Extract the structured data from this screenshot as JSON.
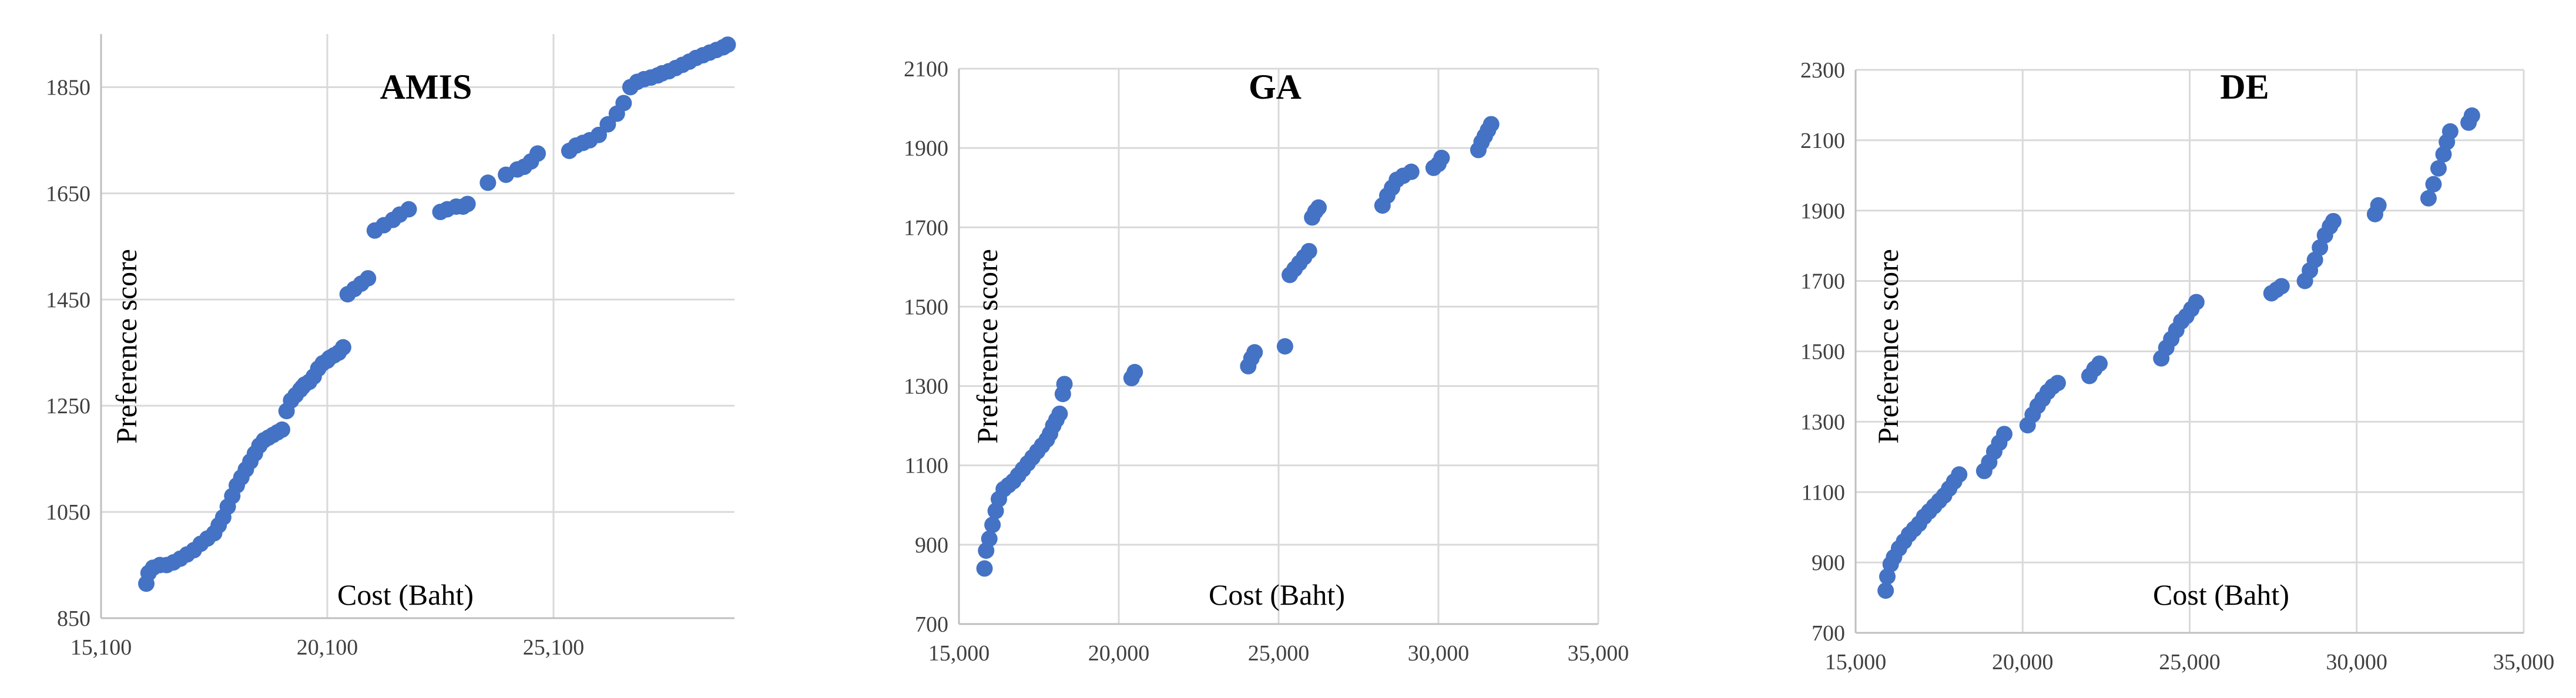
{
  "colors": {
    "marker": "#4472C4",
    "grid": "#d9d9d9",
    "axis": "#bfbfbf",
    "text": "#404040"
  },
  "chart_data": [
    {
      "type": "scatter",
      "title": "AMIS",
      "xlabel": "Cost (Baht)",
      "ylabel": "Preference score",
      "xlim": [
        15100,
        29100
      ],
      "ylim": [
        850,
        1950
      ],
      "xticks": [
        15100,
        20100,
        25100
      ],
      "xtick_labels": [
        "15,100",
        "20,100",
        "25,100"
      ],
      "yticks": [
        850,
        1050,
        1250,
        1450,
        1650,
        1850
      ],
      "ytick_labels": [
        "850",
        "1050",
        "1250",
        "1450",
        "1650",
        "1850"
      ],
      "grid": true,
      "legend": "none",
      "x": [
        16100,
        16150,
        16250,
        16400,
        16550,
        16700,
        16850,
        17000,
        17150,
        17300,
        17450,
        17600,
        17700,
        17800,
        17900,
        18000,
        18100,
        18200,
        18300,
        18400,
        18500,
        18600,
        18700,
        18800,
        18900,
        19000,
        19100,
        19200,
        19300,
        19400,
        19500,
        19550,
        19600,
        19700,
        19800,
        19900,
        20000,
        20100,
        20150,
        20250,
        20350,
        20450,
        20550,
        20700,
        20850,
        21000,
        21150,
        21350,
        21550,
        21700,
        21900,
        22600,
        22750,
        22950,
        23100,
        23200,
        23650,
        24050,
        24300,
        24450,
        24600,
        24750,
        25450,
        25600,
        25750,
        25900,
        26100,
        26300,
        26500,
        26650,
        26800,
        26950,
        27100,
        27250,
        27400,
        27500,
        27650,
        27800,
        27950,
        28100,
        28250,
        28400,
        28550,
        28700,
        28850,
        28950
      ],
      "y": [
        915,
        935,
        945,
        950,
        950,
        955,
        962,
        970,
        978,
        990,
        1000,
        1010,
        1025,
        1040,
        1060,
        1080,
        1100,
        1115,
        1130,
        1145,
        1160,
        1175,
        1185,
        1190,
        1195,
        1200,
        1205,
        1240,
        1260,
        1270,
        1280,
        1285,
        1290,
        1295,
        1305,
        1320,
        1330,
        1335,
        1340,
        1345,
        1350,
        1360,
        1460,
        1470,
        1480,
        1490,
        1580,
        1590,
        1600,
        1610,
        1620,
        1615,
        1620,
        1625,
        1625,
        1630,
        1670,
        1685,
        1695,
        1700,
        1710,
        1725,
        1730,
        1740,
        1745,
        1750,
        1760,
        1780,
        1800,
        1820,
        1850,
        1860,
        1865,
        1868,
        1872,
        1876,
        1880,
        1886,
        1892,
        1898,
        1905,
        1910,
        1915,
        1920,
        1925,
        1930
      ]
    },
    {
      "type": "scatter",
      "title": "GA",
      "xlabel": "Cost (Baht)",
      "ylabel": "Preference score",
      "xlim": [
        15000,
        35000
      ],
      "ylim": [
        700,
        2100
      ],
      "xticks": [
        15000,
        20000,
        25000,
        30000,
        35000
      ],
      "xtick_labels": [
        "15,000",
        "20,000",
        "25,000",
        "30,000",
        "35,000"
      ],
      "yticks": [
        700,
        900,
        1100,
        1300,
        1500,
        1700,
        1900,
        2100
      ],
      "ytick_labels": [
        "700",
        "900",
        "1100",
        "1300",
        "1500",
        "1700",
        "1900",
        "2100"
      ],
      "grid": true,
      "legend": "none",
      "x": [
        15800,
        15850,
        15950,
        16050,
        16150,
        16250,
        16400,
        16550,
        16700,
        16850,
        17000,
        17150,
        17300,
        17450,
        17600,
        17750,
        17850,
        17950,
        18050,
        18150,
        18250,
        18300,
        20400,
        20500,
        24050,
        24150,
        24250,
        25200,
        25350,
        25500,
        25650,
        25800,
        25950,
        26050,
        26150,
        26250,
        28250,
        28400,
        28550,
        28700,
        28900,
        29150,
        29850,
        30000,
        30100,
        31250,
        31350,
        31450,
        31550,
        31650
      ],
      "y": [
        840,
        885,
        915,
        950,
        985,
        1015,
        1040,
        1050,
        1060,
        1075,
        1090,
        1105,
        1120,
        1135,
        1150,
        1165,
        1180,
        1200,
        1215,
        1230,
        1280,
        1305,
        1320,
        1335,
        1350,
        1370,
        1385,
        1400,
        1580,
        1595,
        1610,
        1625,
        1640,
        1725,
        1740,
        1750,
        1755,
        1780,
        1800,
        1820,
        1830,
        1840,
        1850,
        1860,
        1875,
        1895,
        1915,
        1930,
        1945,
        1960
      ]
    },
    {
      "type": "scatter",
      "title": "DE",
      "xlabel": "Cost (Baht)",
      "ylabel": "Preference score",
      "xlim": [
        15000,
        35000
      ],
      "ylim": [
        700,
        2300
      ],
      "xticks": [
        15000,
        20000,
        25000,
        30000,
        35000
      ],
      "xtick_labels": [
        "15,000",
        "20,000",
        "25,000",
        "30,000",
        "35,000"
      ],
      "yticks": [
        700,
        900,
        1100,
        1300,
        1500,
        1700,
        1900,
        2100,
        2300
      ],
      "ytick_labels": [
        "700",
        "900",
        "1100",
        "1300",
        "1500",
        "1700",
        "1900",
        "2100",
        "2300"
      ],
      "grid": true,
      "legend": "none",
      "x": [
        15900,
        15950,
        16050,
        16150,
        16300,
        16450,
        16600,
        16750,
        16900,
        17050,
        17200,
        17350,
        17500,
        17650,
        17800,
        17950,
        18100,
        18850,
        19000,
        19150,
        19300,
        19450,
        20150,
        20300,
        20450,
        20600,
        20750,
        20900,
        21050,
        22000,
        22150,
        22300,
        24150,
        24300,
        24450,
        24600,
        24750,
        24900,
        25050,
        25200,
        27450,
        27600,
        27750,
        28450,
        28600,
        28750,
        28900,
        29050,
        29200,
        29300,
        30550,
        30650,
        32150,
        32300,
        32450,
        32600,
        32700,
        32800,
        33350,
        33450
      ],
      "y": [
        820,
        860,
        895,
        915,
        940,
        960,
        980,
        995,
        1010,
        1030,
        1045,
        1060,
        1075,
        1090,
        1110,
        1130,
        1150,
        1160,
        1185,
        1215,
        1240,
        1265,
        1290,
        1320,
        1345,
        1365,
        1385,
        1400,
        1410,
        1430,
        1450,
        1465,
        1480,
        1510,
        1535,
        1560,
        1585,
        1600,
        1620,
        1640,
        1665,
        1675,
        1685,
        1700,
        1730,
        1760,
        1795,
        1830,
        1855,
        1870,
        1890,
        1915,
        1935,
        1975,
        2020,
        2060,
        2095,
        2125,
        2150,
        2170
      ]
    }
  ]
}
